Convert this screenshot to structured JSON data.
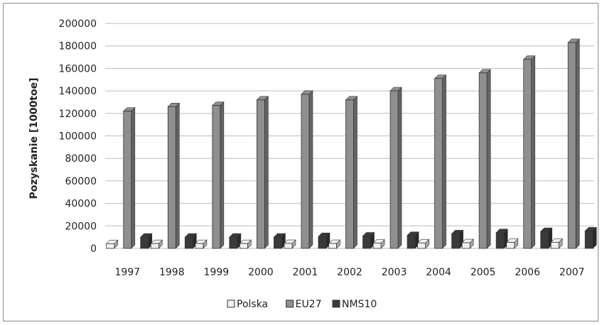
{
  "chart_data": {
    "type": "bar",
    "title": "",
    "xlabel": "",
    "ylabel": "Pozyskanie [1000toe]",
    "ylim": [
      0,
      200000
    ],
    "yticks": [
      "0",
      "20000",
      "40000",
      "60000",
      "80000",
      "100000",
      "120000",
      "140000",
      "160000",
      "180000",
      "200000"
    ],
    "categories": [
      "1997",
      "1998",
      "1999",
      "2000",
      "2001",
      "2002",
      "2003",
      "2004",
      "2005",
      "2006",
      "2007"
    ],
    "series": [
      {
        "name": "Polska",
        "color": "#f2f2f2",
        "values": [
          4200,
          4300,
          4300,
          4300,
          4400,
          4400,
          4600,
          4800,
          5000,
          5300,
          5400
        ]
      },
      {
        "name": "EU27",
        "color": "#8f8f8f",
        "values": [
          122000,
          126000,
          127000,
          132000,
          137000,
          132000,
          140000,
          151000,
          156000,
          168000,
          183000
        ]
      },
      {
        "name": "NMS10",
        "color": "#3a3a3a",
        "values": [
          10000,
          10000,
          10000,
          10000,
          10500,
          11000,
          11500,
          13000,
          14000,
          15000,
          15500
        ]
      }
    ],
    "grid": true,
    "legend_position": "bottom"
  }
}
